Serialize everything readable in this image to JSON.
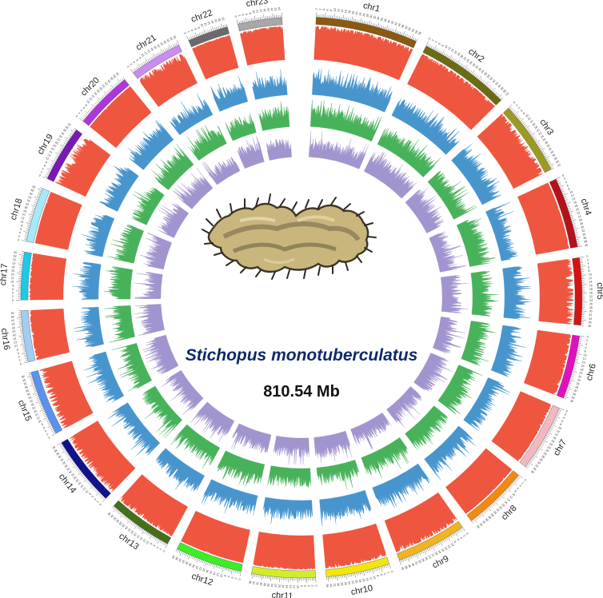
{
  "title": {
    "species": "Stichopus monotuberculatus",
    "genome_size": "810.54 Mb"
  },
  "illustration": {
    "icon": "sea-cucumber-icon"
  },
  "chromosomes": [
    {
      "name": "chr1",
      "color": "#8a5a12",
      "length": 58
    },
    {
      "name": "chr2",
      "color": "#6b6b14",
      "length": 52
    },
    {
      "name": "chr3",
      "color": "#9b9a24",
      "length": 42
    },
    {
      "name": "chr4",
      "color": "#b3121c",
      "length": 40
    },
    {
      "name": "chr5",
      "color": "#d41414",
      "length": 38
    },
    {
      "name": "chr6",
      "color": "#e010c0",
      "length": 36
    },
    {
      "name": "chr7",
      "color": "#f2b8c0",
      "length": 38
    },
    {
      "name": "chr8",
      "color": "#f08a10",
      "length": 37
    },
    {
      "name": "chr9",
      "color": "#f0b420",
      "length": 40
    },
    {
      "name": "chr10",
      "color": "#f2e60c",
      "length": 36
    },
    {
      "name": "chr11",
      "color": "#d2ec28",
      "length": 36
    },
    {
      "name": "chr12",
      "color": "#3cee24",
      "length": 38
    },
    {
      "name": "chr13",
      "color": "#44701c",
      "length": 37
    },
    {
      "name": "chr14",
      "color": "#10138a",
      "length": 40
    },
    {
      "name": "chr15",
      "color": "#5a92ec",
      "length": 37
    },
    {
      "name": "chr16",
      "color": "#a4cdf2",
      "length": 29
    },
    {
      "name": "chr17",
      "color": "#1ec8e6",
      "length": 27
    },
    {
      "name": "chr18",
      "color": "#a6eaf6",
      "length": 31
    },
    {
      "name": "chr19",
      "color": "#7a18b6",
      "length": 32
    },
    {
      "name": "chr20",
      "color": "#ae36d8",
      "length": 33
    },
    {
      "name": "chr21",
      "color": "#ca8cee",
      "length": 30
    },
    {
      "name": "chr22",
      "color": "#6a6a6a",
      "length": 23
    },
    {
      "name": "chr23",
      "color": "#a8a8a8",
      "length": 25
    }
  ],
  "tracks": [
    {
      "id": "track-1",
      "color": "#ee4d36"
    },
    {
      "id": "track-2",
      "color": "#3f90cc"
    },
    {
      "id": "track-3",
      "color": "#3fae53"
    },
    {
      "id": "track-4",
      "color": "#9e8fcc"
    }
  ]
}
